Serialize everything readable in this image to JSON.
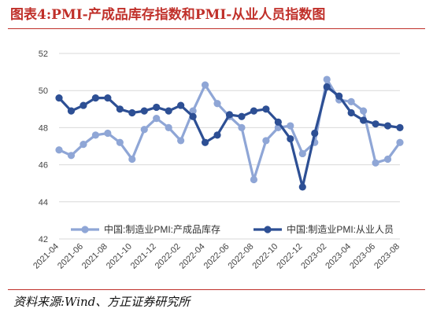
{
  "title": "图表4:PMI-产成品库存指数和PMI-从业人员指数图",
  "source": "资料来源:Wind、方正证券研究所",
  "chart_data": {
    "type": "line",
    "title": "",
    "xlabel": "",
    "ylabel": "",
    "ylim": [
      42,
      52
    ],
    "yticks": [
      42,
      44,
      46,
      48,
      50,
      52
    ],
    "grid": "horizontal",
    "legend_position": "bottom",
    "x": [
      "2021-04",
      "2021-05",
      "2021-06",
      "2021-07",
      "2021-08",
      "2021-09",
      "2021-10",
      "2021-11",
      "2021-12",
      "2022-01",
      "2022-02",
      "2022-03",
      "2022-04",
      "2022-05",
      "2022-06",
      "2022-07",
      "2022-08",
      "2022-09",
      "2022-10",
      "2022-11",
      "2022-12",
      "2023-01",
      "2023-02",
      "2023-03",
      "2023-04",
      "2023-05",
      "2023-06",
      "2023-07",
      "2023-08"
    ],
    "x_tick_labels": [
      "2021-04",
      "2021-06",
      "2021-08",
      "2021-10",
      "2021-12",
      "2022-02",
      "2022-04",
      "2022-06",
      "2022-08",
      "2022-10",
      "2022-12",
      "2023-02",
      "2023-04",
      "2023-06",
      "2023-08"
    ],
    "series": [
      {
        "name": "中国:制造业PMI:产成品库存",
        "color": "#8fa6d6",
        "values": [
          46.8,
          46.5,
          47.1,
          47.6,
          47.7,
          47.2,
          46.3,
          47.9,
          48.5,
          48.0,
          47.3,
          48.9,
          50.3,
          49.3,
          48.6,
          48.0,
          45.2,
          47.3,
          48.0,
          48.1,
          46.6,
          47.2,
          50.6,
          49.5,
          49.4,
          48.9,
          46.1,
          46.3,
          47.2
        ]
      },
      {
        "name": "中国:制造业PMI:从业人员",
        "color": "#2d4f94",
        "values": [
          49.6,
          48.9,
          49.2,
          49.6,
          49.6,
          49.0,
          48.8,
          48.9,
          49.1,
          48.9,
          49.2,
          48.6,
          47.2,
          47.6,
          48.7,
          48.6,
          48.9,
          49.0,
          48.3,
          47.4,
          44.8,
          47.7,
          50.2,
          49.7,
          48.8,
          48.4,
          48.2,
          48.1,
          48.0
        ]
      }
    ]
  }
}
